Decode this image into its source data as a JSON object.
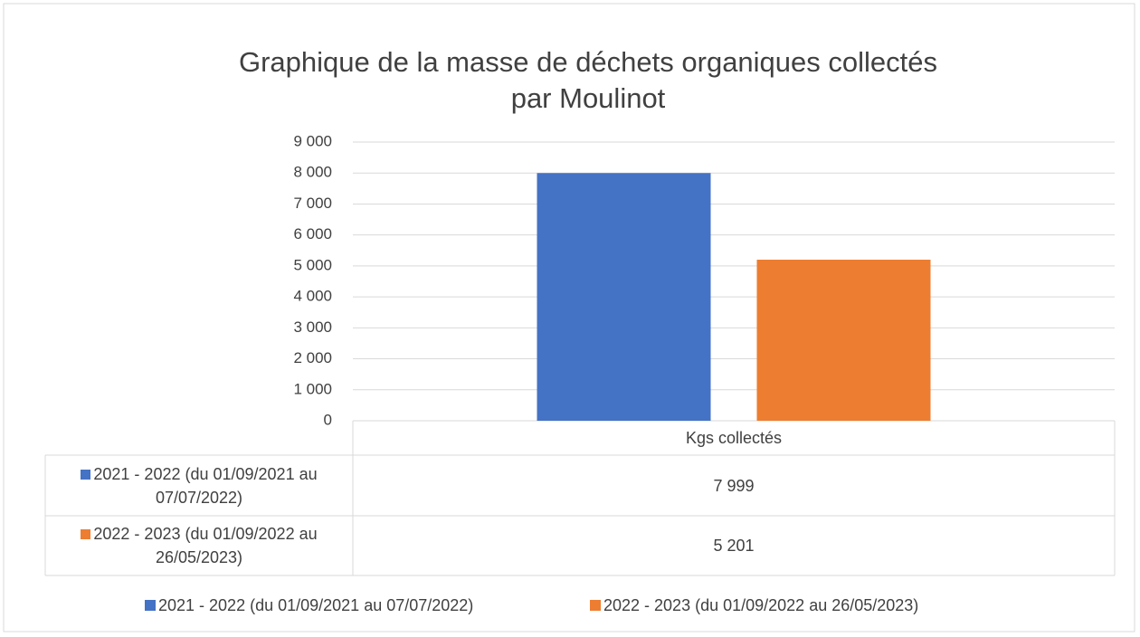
{
  "chart_data": {
    "type": "bar",
    "title": "Graphique de la masse de déchets organiques collectés par Moulinot",
    "categories": [
      "Kgs collectés"
    ],
    "series": [
      {
        "name": "2021 - 2022 (du 01/09/2021 au 07/07/2022)",
        "color": "#4472c4",
        "values": [
          7999
        ],
        "value_labels": [
          "7 999"
        ]
      },
      {
        "name": "2022 - 2023 (du 01/09/2022 au 26/05/2023)",
        "color": "#ed7d31",
        "values": [
          5201
        ],
        "value_labels": [
          "5 201"
        ]
      }
    ],
    "ylim": [
      0,
      9000
    ],
    "yticks": [
      0,
      {
        "value": 1000,
        "label": "1 000"
      },
      {
        "value": 2000,
        "label": "2 000"
      },
      {
        "value": 3000,
        "label": "3 000"
      },
      {
        "value": 4000,
        "label": "4 000"
      },
      {
        "value": 5000,
        "label": "5 000"
      },
      {
        "value": 6000,
        "label": "6 000"
      },
      {
        "value": 7000,
        "label": "7 000"
      },
      {
        "value": 8000,
        "label": "8 000"
      },
      {
        "value": 9000,
        "label": "9 000"
      }
    ],
    "grid": true,
    "legend": "bottom"
  }
}
